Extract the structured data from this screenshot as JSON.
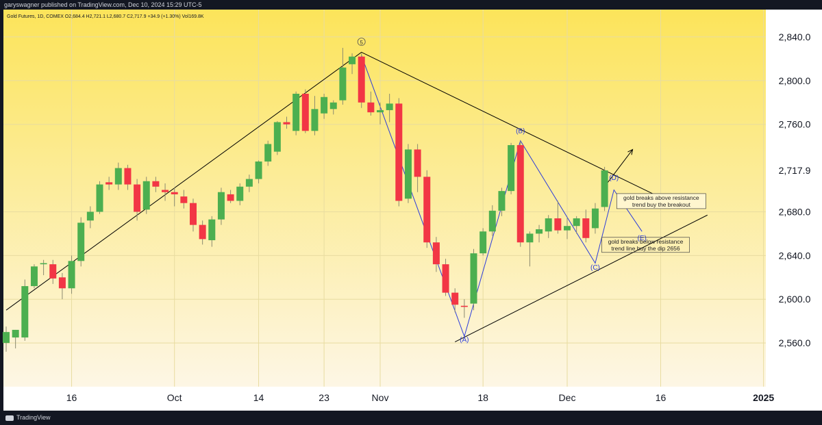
{
  "header": {
    "publisher": "garyswagner published on TradingView.com, Dec 10, 2024 15:29 UTC-5",
    "legend": "Gold Futures, 1D, COMEX  O2,684.4  H2,721.1  L2,680.7  C2,717.9  +34.9 (+1.30%)  Vol169.8K"
  },
  "footer": {
    "brand": "TradingView"
  },
  "colors": {
    "up": "#4caf50",
    "down": "#f23645",
    "wave": "#2a3bdb",
    "trend": "#000000",
    "last_price_bg": "#ffffff",
    "bg_top": "#fce45a",
    "bg_bottom": "#fdf6e5"
  },
  "chart_data": {
    "type": "candlestick",
    "symbol": "Gold Futures",
    "interval": "1D",
    "ylim": [
      2520,
      2865
    ],
    "last_price": "2,717.9",
    "y_ticks": [
      {
        "value": 2560,
        "label": "2,560.0"
      },
      {
        "value": 2600,
        "label": "2,600.0"
      },
      {
        "value": 2640,
        "label": "2,640.0"
      },
      {
        "value": 2680,
        "label": "2,680.0"
      },
      {
        "value": 2760,
        "label": "2,760.0"
      },
      {
        "value": 2800,
        "label": "2,800.0"
      },
      {
        "value": 2840,
        "label": "2,840.0"
      }
    ],
    "x_ticks": [
      {
        "index": 7,
        "label": "16"
      },
      {
        "index": 18,
        "label": "Oct"
      },
      {
        "index": 27,
        "label": "14"
      },
      {
        "index": 34,
        "label": "23"
      },
      {
        "index": 40,
        "label": "Nov"
      },
      {
        "index": 51,
        "label": "18"
      },
      {
        "index": 60,
        "label": "Dec"
      },
      {
        "index": 70,
        "label": "16"
      },
      {
        "index": 81,
        "label": "2025"
      }
    ],
    "x_range": [
      0,
      84
    ],
    "candles": [
      {
        "i": 0,
        "o": 2560,
        "h": 2575,
        "l": 2552,
        "c": 2570
      },
      {
        "i": 1,
        "o": 2565,
        "h": 2572,
        "l": 2555,
        "c": 2572
      },
      {
        "i": 2,
        "o": 2565,
        "h": 2618,
        "l": 2562,
        "c": 2612
      },
      {
        "i": 3,
        "o": 2612,
        "h": 2632,
        "l": 2610,
        "c": 2630
      },
      {
        "i": 4,
        "o": 2632,
        "h": 2636,
        "l": 2622,
        "c": 2633
      },
      {
        "i": 5,
        "o": 2632,
        "h": 2636,
        "l": 2614,
        "c": 2619
      },
      {
        "i": 6,
        "o": 2620,
        "h": 2624,
        "l": 2600,
        "c": 2610
      },
      {
        "i": 7,
        "o": 2610,
        "h": 2640,
        "l": 2605,
        "c": 2635
      },
      {
        "i": 8,
        "o": 2635,
        "h": 2675,
        "l": 2630,
        "c": 2670
      },
      {
        "i": 9,
        "o": 2672,
        "h": 2685,
        "l": 2665,
        "c": 2680
      },
      {
        "i": 10,
        "o": 2680,
        "h": 2708,
        "l": 2678,
        "c": 2705
      },
      {
        "i": 11,
        "o": 2707,
        "h": 2712,
        "l": 2700,
        "c": 2705
      },
      {
        "i": 12,
        "o": 2705,
        "h": 2725,
        "l": 2700,
        "c": 2720
      },
      {
        "i": 13,
        "o": 2720,
        "h": 2723,
        "l": 2700,
        "c": 2705
      },
      {
        "i": 14,
        "o": 2705,
        "h": 2710,
        "l": 2672,
        "c": 2680
      },
      {
        "i": 15,
        "o": 2682,
        "h": 2712,
        "l": 2678,
        "c": 2708
      },
      {
        "i": 16,
        "o": 2708,
        "h": 2712,
        "l": 2698,
        "c": 2703
      },
      {
        "i": 17,
        "o": 2700,
        "h": 2706,
        "l": 2690,
        "c": 2698
      },
      {
        "i": 18,
        "o": 2698,
        "h": 2702,
        "l": 2685,
        "c": 2696
      },
      {
        "i": 19,
        "o": 2694,
        "h": 2700,
        "l": 2683,
        "c": 2688
      },
      {
        "i": 20,
        "o": 2688,
        "h": 2692,
        "l": 2662,
        "c": 2668
      },
      {
        "i": 21,
        "o": 2668,
        "h": 2672,
        "l": 2650,
        "c": 2655
      },
      {
        "i": 22,
        "o": 2654,
        "h": 2676,
        "l": 2648,
        "c": 2673
      },
      {
        "i": 23,
        "o": 2673,
        "h": 2702,
        "l": 2668,
        "c": 2698
      },
      {
        "i": 24,
        "o": 2696,
        "h": 2700,
        "l": 2688,
        "c": 2690
      },
      {
        "i": 25,
        "o": 2690,
        "h": 2706,
        "l": 2686,
        "c": 2703
      },
      {
        "i": 26,
        "o": 2703,
        "h": 2714,
        "l": 2698,
        "c": 2710
      },
      {
        "i": 27,
        "o": 2710,
        "h": 2727,
        "l": 2706,
        "c": 2726
      },
      {
        "i": 28,
        "o": 2726,
        "h": 2745,
        "l": 2722,
        "c": 2742
      },
      {
        "i": 29,
        "o": 2735,
        "h": 2763,
        "l": 2732,
        "c": 2762
      },
      {
        "i": 30,
        "o": 2762,
        "h": 2767,
        "l": 2756,
        "c": 2760
      },
      {
        "i": 31,
        "o": 2754,
        "h": 2790,
        "l": 2750,
        "c": 2788
      },
      {
        "i": 32,
        "o": 2788,
        "h": 2792,
        "l": 2752,
        "c": 2754
      },
      {
        "i": 33,
        "o": 2754,
        "h": 2786,
        "l": 2750,
        "c": 2774
      },
      {
        "i": 34,
        "o": 2770,
        "h": 2788,
        "l": 2765,
        "c": 2785
      },
      {
        "i": 35,
        "o": 2774,
        "h": 2782,
        "l": 2769,
        "c": 2780
      },
      {
        "i": 36,
        "o": 2782,
        "h": 2830,
        "l": 2778,
        "c": 2812
      },
      {
        "i": 37,
        "o": 2815,
        "h": 2825,
        "l": 2806,
        "c": 2822
      },
      {
        "i": 38,
        "o": 2822,
        "h": 2825,
        "l": 2775,
        "c": 2780
      },
      {
        "i": 39,
        "o": 2780,
        "h": 2790,
        "l": 2768,
        "c": 2771
      },
      {
        "i": 40,
        "o": 2771,
        "h": 2780,
        "l": 2760,
        "c": 2773
      },
      {
        "i": 41,
        "o": 2773,
        "h": 2788,
        "l": 2762,
        "c": 2779
      },
      {
        "i": 42,
        "o": 2779,
        "h": 2784,
        "l": 2685,
        "c": 2690
      },
      {
        "i": 43,
        "o": 2692,
        "h": 2742,
        "l": 2688,
        "c": 2737
      },
      {
        "i": 44,
        "o": 2737,
        "h": 2742,
        "l": 2698,
        "c": 2712
      },
      {
        "i": 45,
        "o": 2712,
        "h": 2718,
        "l": 2647,
        "c": 2652
      },
      {
        "i": 46,
        "o": 2652,
        "h": 2657,
        "l": 2625,
        "c": 2632
      },
      {
        "i": 47,
        "o": 2632,
        "h": 2637,
        "l": 2603,
        "c": 2606
      },
      {
        "i": 48,
        "o": 2606,
        "h": 2610,
        "l": 2588,
        "c": 2595
      },
      {
        "i": 49,
        "o": 2594,
        "h": 2600,
        "l": 2583,
        "c": 2593
      },
      {
        "i": 50,
        "o": 2596,
        "h": 2646,
        "l": 2590,
        "c": 2642
      },
      {
        "i": 51,
        "o": 2642,
        "h": 2665,
        "l": 2640,
        "c": 2662
      },
      {
        "i": 52,
        "o": 2662,
        "h": 2686,
        "l": 2658,
        "c": 2681
      },
      {
        "i": 53,
        "o": 2681,
        "h": 2702,
        "l": 2676,
        "c": 2699
      },
      {
        "i": 54,
        "o": 2699,
        "h": 2743,
        "l": 2696,
        "c": 2741
      },
      {
        "i": 55,
        "o": 2741,
        "h": 2745,
        "l": 2648,
        "c": 2652
      },
      {
        "i": 56,
        "o": 2652,
        "h": 2662,
        "l": 2630,
        "c": 2660
      },
      {
        "i": 57,
        "o": 2660,
        "h": 2668,
        "l": 2652,
        "c": 2664
      },
      {
        "i": 58,
        "o": 2662,
        "h": 2677,
        "l": 2656,
        "c": 2674
      },
      {
        "i": 59,
        "o": 2674,
        "h": 2690,
        "l": 2660,
        "c": 2663
      },
      {
        "i": 60,
        "o": 2663,
        "h": 2675,
        "l": 2655,
        "c": 2667
      },
      {
        "i": 61,
        "o": 2667,
        "h": 2676,
        "l": 2660,
        "c": 2674
      },
      {
        "i": 62,
        "o": 2674,
        "h": 2682,
        "l": 2652,
        "c": 2656
      },
      {
        "i": 63,
        "o": 2665,
        "h": 2688,
        "l": 2660,
        "c": 2683
      },
      {
        "i": 64,
        "o": 2684.4,
        "h": 2721.1,
        "l": 2680.7,
        "c": 2717.9
      }
    ],
    "trendlines": [
      {
        "name": "upper-trend-line",
        "color": "trend",
        "points": [
          [
            0,
            2590
          ],
          [
            38,
            2826
          ],
          [
            70,
            2693
          ]
        ]
      },
      {
        "name": "rising-support-line",
        "color": "trend",
        "points": [
          [
            48,
            2561
          ],
          [
            75,
            2677
          ]
        ]
      },
      {
        "name": "elliott-wave-line",
        "color": "wave",
        "points": [
          [
            38,
            2823
          ],
          [
            49,
            2566
          ],
          [
            55,
            2745
          ],
          [
            63,
            2633
          ],
          [
            65,
            2700
          ],
          [
            68,
            2662
          ]
        ]
      },
      {
        "name": "breakout-arrow",
        "color": "trend",
        "points": [
          [
            64,
            2703
          ],
          [
            67,
            2737
          ]
        ],
        "arrow": true
      }
    ],
    "annotations": [
      {
        "label": "5",
        "i": 38,
        "y": 2833,
        "circled": true
      },
      {
        "label": "(A)",
        "i": 49,
        "y": 2561
      },
      {
        "label": "(B)",
        "i": 55,
        "y": 2752
      },
      {
        "label": "(C)",
        "i": 63,
        "y": 2627
      },
      {
        "label": "(D)",
        "i": 65,
        "y": 2709
      },
      {
        "label": "(E)",
        "i": 68,
        "y": 2654
      }
    ],
    "notes": [
      {
        "lines": [
          "gold breaks above resistance",
          "trend buy the breakout"
        ],
        "i": 65.3,
        "y": 2691
      },
      {
        "lines": [
          "gold breaks below resistance",
          "trend line buy the dip 2656"
        ],
        "i": 63.7,
        "y": 2651
      }
    ]
  }
}
